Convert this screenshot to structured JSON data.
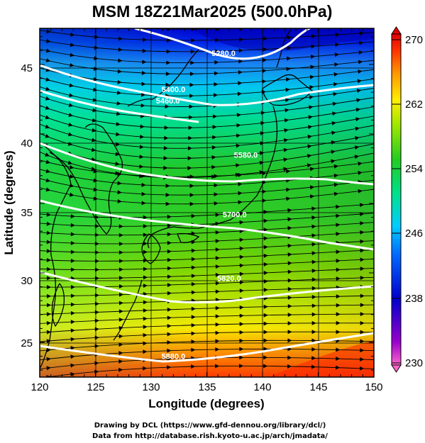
{
  "title": "MSM 18Z21Mar2025 (500.0hPa)",
  "x_axis": {
    "label": "Longitude (degrees)",
    "range": [
      120,
      150
    ],
    "ticks": [
      "120",
      "125",
      "130",
      "135",
      "140",
      "145",
      "150"
    ]
  },
  "y_axis": {
    "label": "Latitude  (degrees)",
    "range": [
      22.5,
      47.6
    ],
    "ticks": [
      "25",
      "30",
      "35",
      "40",
      "45"
    ]
  },
  "colorbar": {
    "range": [
      230,
      270
    ],
    "ticks": [
      "230",
      "238",
      "246",
      "254",
      "262",
      "270"
    ]
  },
  "contours": [
    {
      "value": 5280,
      "label": "5280.0",
      "lon": 136.5,
      "lat": 45.6
    },
    {
      "value": 5400,
      "label": "5400.0",
      "lon": 132.0,
      "lat": 43.0
    },
    {
      "value": 5460,
      "label": "5460.0",
      "lon": 131.5,
      "lat": 42.2
    },
    {
      "value": 5580,
      "label": "5580.0",
      "lon": 138.5,
      "lat": 38.3
    },
    {
      "value": 5700,
      "label": "5700.0",
      "lon": 137.5,
      "lat": 34.0
    },
    {
      "value": 5820,
      "label": "5820.0",
      "lon": 137.0,
      "lat": 29.4
    },
    {
      "value": 5880,
      "label": "5880.0",
      "lon": 132.0,
      "lat": 23.8
    }
  ],
  "colors": {
    "scale": [
      "#ff66cc",
      "#9900cc",
      "#0000cc",
      "#0066ff",
      "#00ccff",
      "#00e08a",
      "#22cc22",
      "#99e600",
      "#ffee00",
      "#ff9900",
      "#ff3300",
      "#e00000"
    ]
  },
  "credits": {
    "line1": "Drawing by DCL (https://www.gfd-dennou.org/library/dcl/)",
    "line2": "Data from http://database.rish.kyoto-u.ac.jp/arch/jmadata/"
  }
}
